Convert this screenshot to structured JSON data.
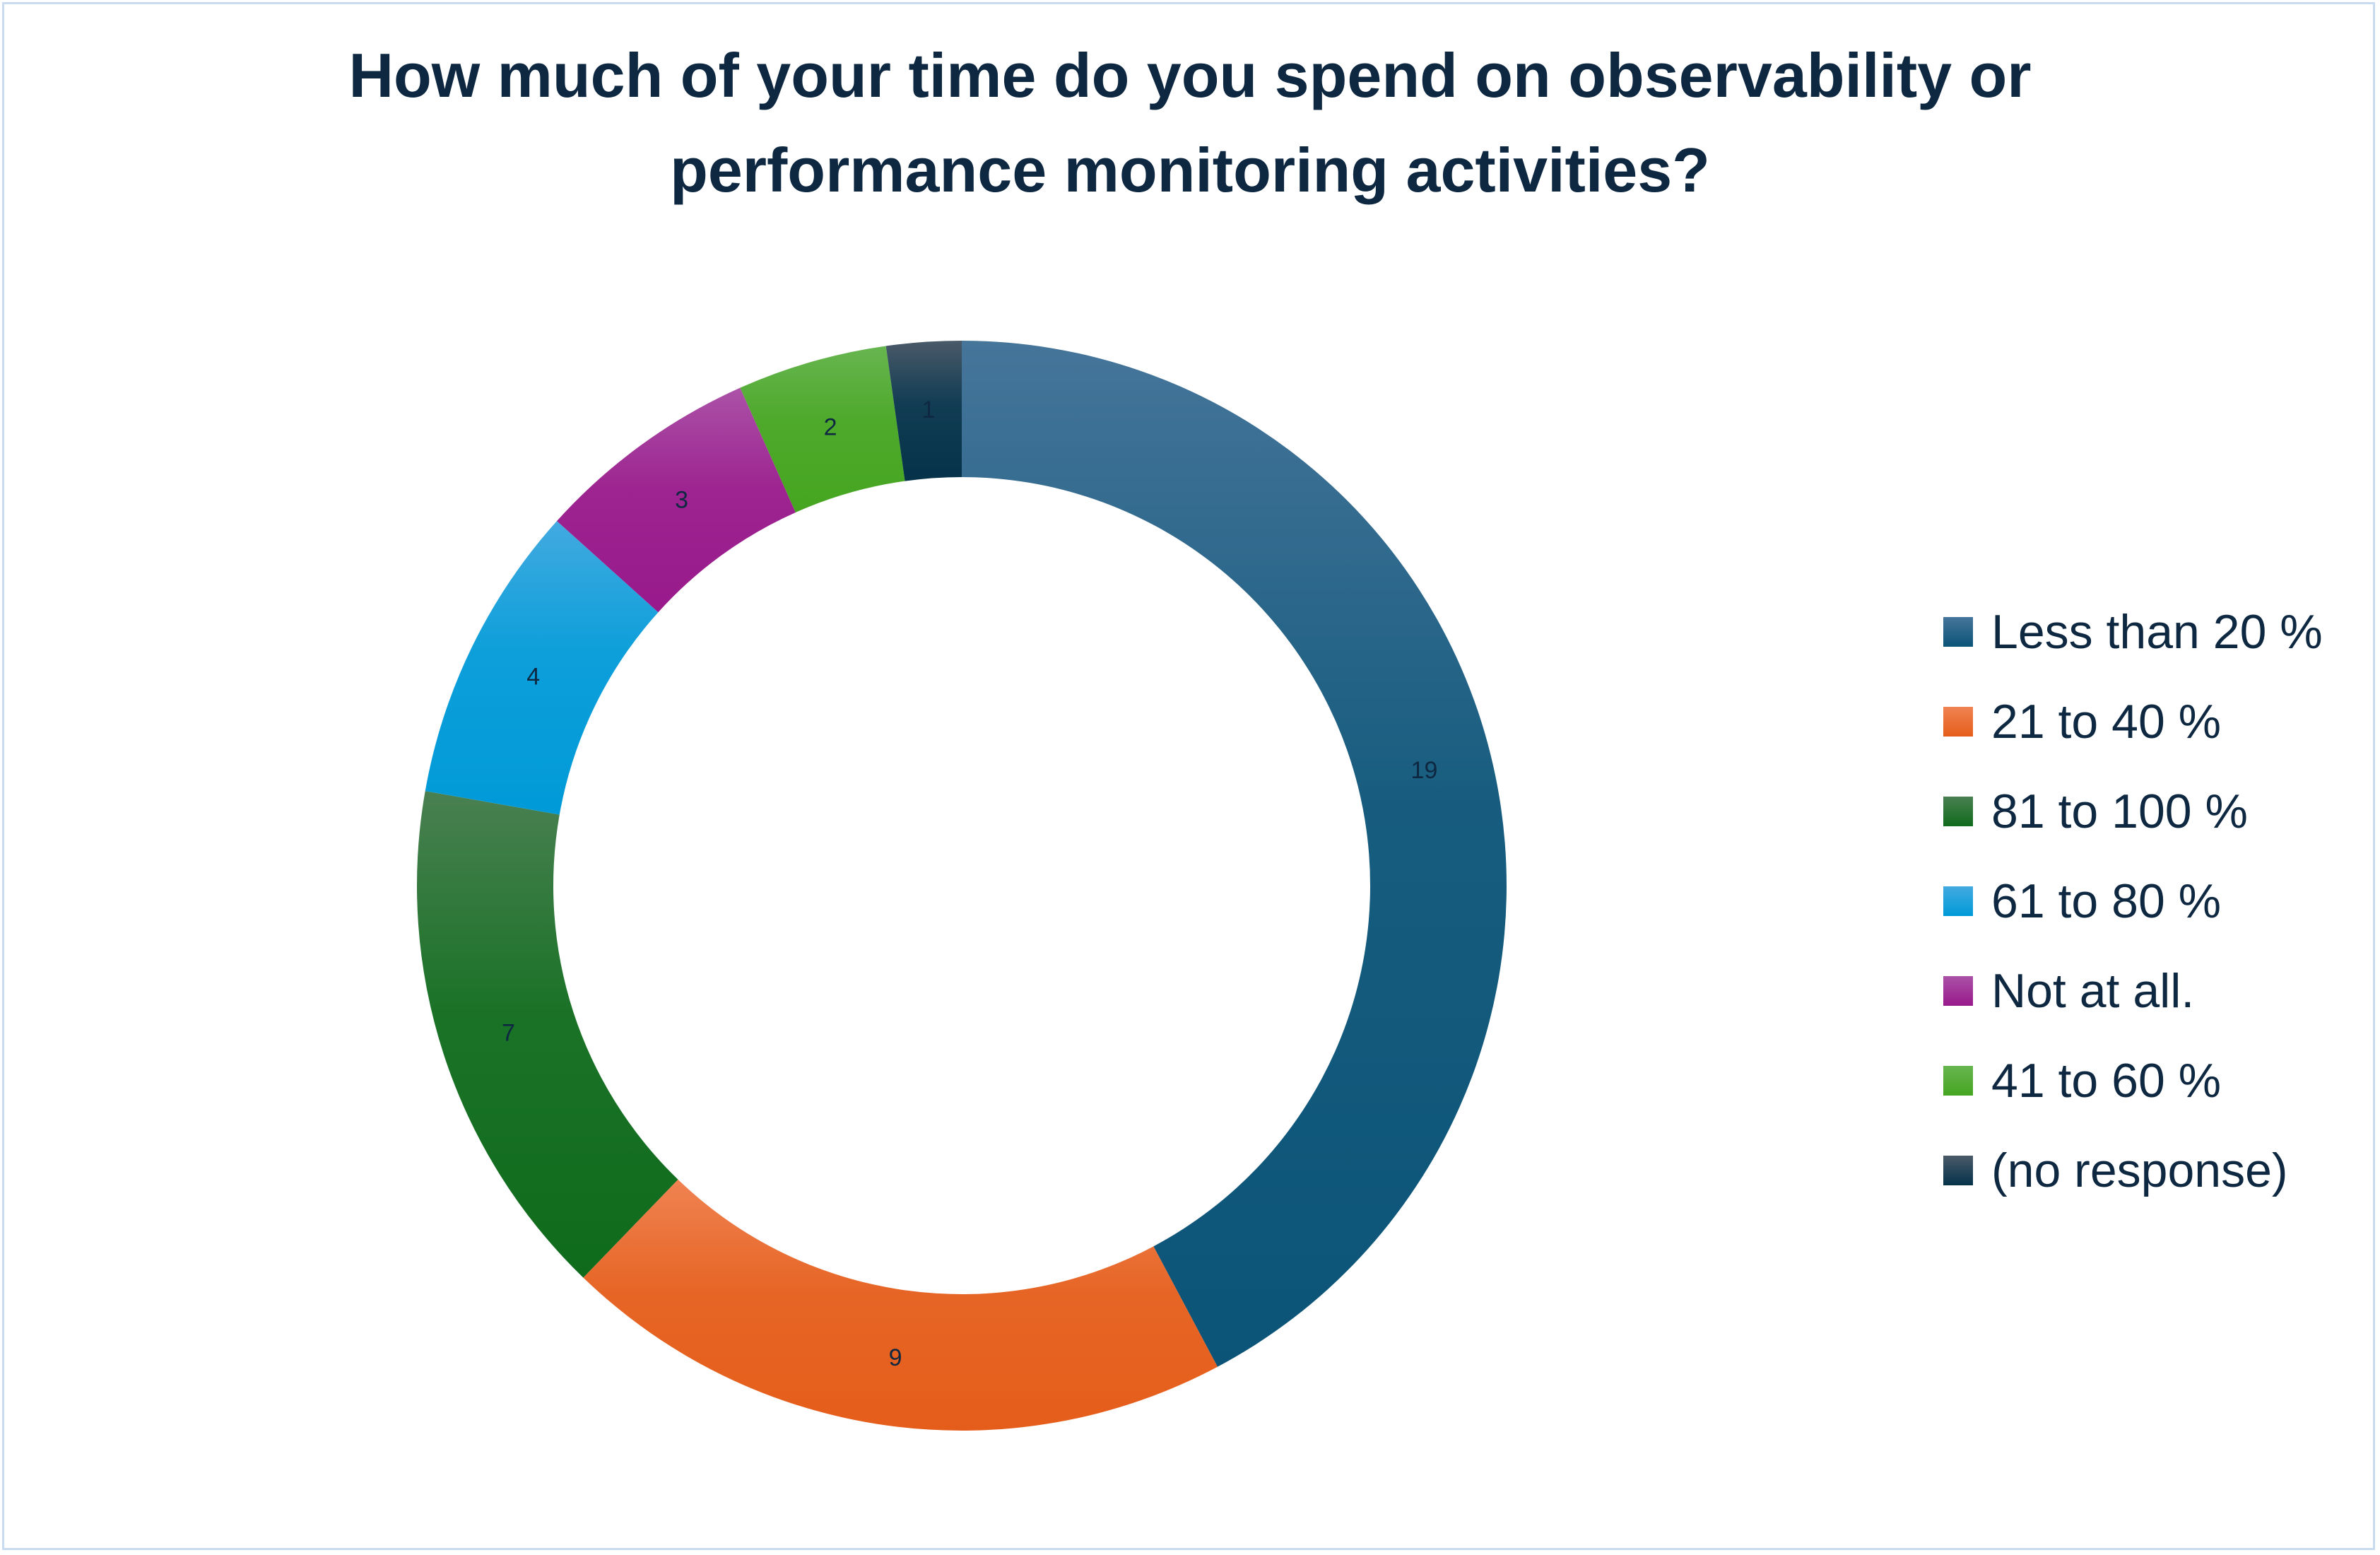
{
  "chart_data": {
    "type": "pie",
    "variant": "donut",
    "title": "How much of your time do you spend on observability or performance monitoring activities?",
    "title_lines": [
      "How much of your time do you spend on observability or",
      "performance monitoring activities?"
    ],
    "legend_position": "right",
    "start_angle": "top, clockwise",
    "slices": [
      {
        "label": "Less than 20 %",
        "value": 19,
        "color": "#0b5478",
        "color_light": "#46759a"
      },
      {
        "label": "21 to 40 %",
        "value": 9,
        "color": "#e55d1a",
        "color_light": "#f08352"
      },
      {
        "label": "81 to 100 %",
        "value": 7,
        "color": "#0f6b1c",
        "color_light": "#4a8052"
      },
      {
        "label": "61 to 80 %",
        "value": 4,
        "color": "#009ad8",
        "color_light": "#43aae0"
      },
      {
        "label": "Not at all.",
        "value": 3,
        "color": "#98198b",
        "color_light": "#ab52a7"
      },
      {
        "label": "41 to 60 %",
        "value": 2,
        "color": "#45a520",
        "color_light": "#67b550"
      },
      {
        "label": "(no response)",
        "value": 1,
        "color": "#05324a",
        "color_light": "#4a5a69"
      }
    ]
  }
}
